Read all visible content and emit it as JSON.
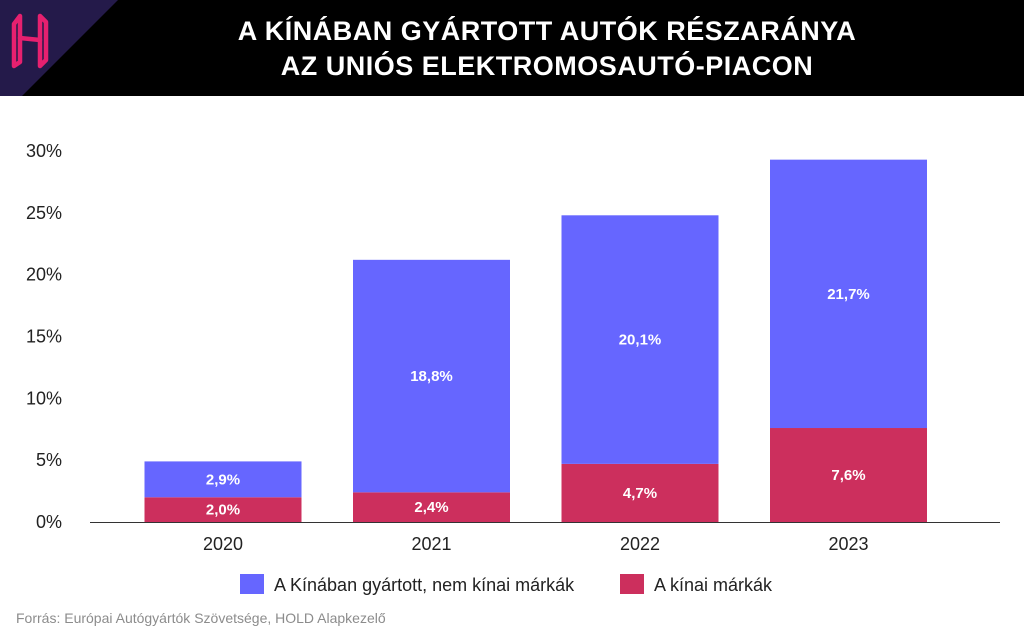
{
  "header": {
    "title_line1": "A KÍNÁBAN GYÁRTOTT AUTÓK RÉSZARÁNYA",
    "title_line2": "AZ UNIÓS ELEKTROMOSAUTÓ-PIACON",
    "logo_icon": "hold-h-logo-icon",
    "logo_color": "#e6206f",
    "background": "#000000"
  },
  "chart_data": {
    "type": "bar",
    "stacked": true,
    "categories": [
      "2020",
      "2021",
      "2022",
      "2023"
    ],
    "series": [
      {
        "name": "A kínai márkák",
        "values": [
          2.0,
          2.4,
          4.7,
          7.6
        ],
        "labels": [
          "2,0%",
          "2,4%",
          "4,7%",
          "7,6%"
        ],
        "color": "#cc2f5d"
      },
      {
        "name": "A Kínában gyártott, nem kínai márkák",
        "values": [
          2.9,
          18.8,
          20.1,
          21.7
        ],
        "labels": [
          "2,9%",
          "18,8%",
          "20,1%",
          "21,7%"
        ],
        "color": "#6666ff"
      }
    ],
    "yticks": [
      0,
      5,
      10,
      15,
      20,
      25,
      30
    ],
    "ytick_labels": [
      "0%",
      "5%",
      "10%",
      "15%",
      "20%",
      "25%",
      "30%"
    ],
    "ylim": [
      0,
      30
    ],
    "grid": false,
    "legend": {
      "placement": "bottom-center",
      "order": [
        "A Kínában gyártott, nem kínai márkák",
        "A kínai márkák"
      ]
    }
  },
  "footer": {
    "source": "Forrás: Európai Autógyártók Szövetsége, HOLD Alapkezelő"
  }
}
